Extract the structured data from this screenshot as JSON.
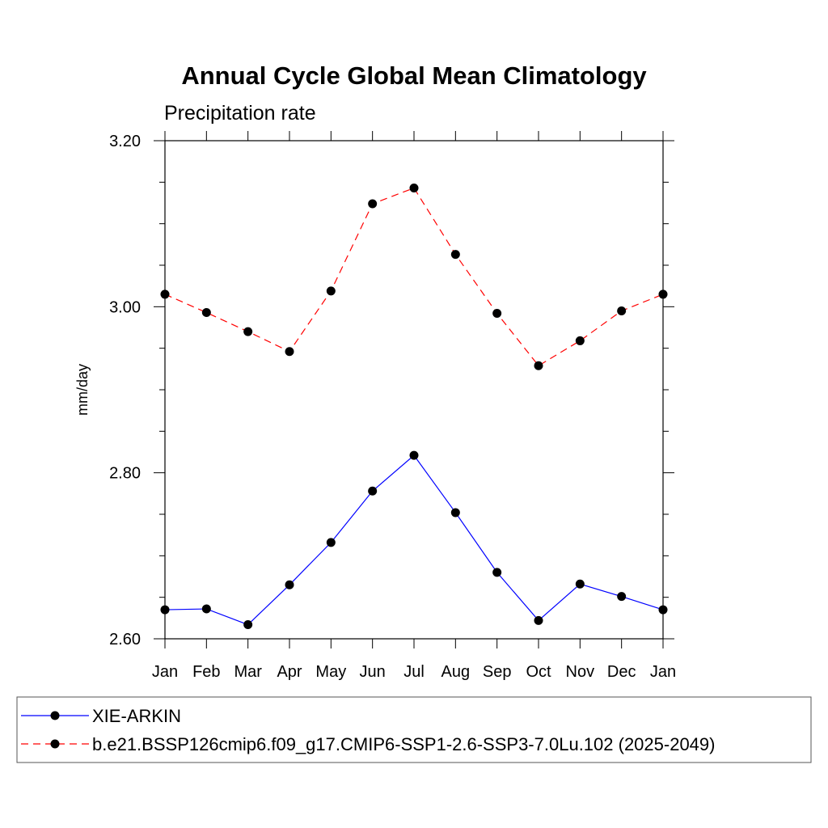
{
  "chart_data": {
    "type": "line",
    "title": "Annual Cycle Global Mean Climatology",
    "subtitle": "Precipitation rate",
    "ylabel": "mm/day",
    "xlabel": "",
    "categories": [
      "Jan",
      "Feb",
      "Mar",
      "Apr",
      "May",
      "Jun",
      "Jul",
      "Aug",
      "Sep",
      "Oct",
      "Nov",
      "Dec",
      "Jan"
    ],
    "ylim": [
      2.6,
      3.2
    ],
    "yticks": [
      "2.60",
      "2.80",
      "3.00",
      "3.20"
    ],
    "grid": false,
    "legend_position": "bottom",
    "series": [
      {
        "name": "XIE-ARKIN",
        "color": "#0000ff",
        "line_style": "solid",
        "marker": "circle",
        "values": [
          2.635,
          2.636,
          2.617,
          2.665,
          2.716,
          2.778,
          2.821,
          2.752,
          2.68,
          2.622,
          2.666,
          2.651,
          2.635
        ]
      },
      {
        "name": "b.e21.BSSP126cmip6.f09_g17.CMIP6-SSP1-2.6-SSP3-7.0Lu.102 (2025-2049)",
        "color": "#ff0000",
        "line_style": "dashed",
        "marker": "circle",
        "values": [
          3.015,
          2.993,
          2.97,
          2.946,
          3.019,
          3.124,
          3.143,
          3.063,
          2.992,
          2.929,
          2.959,
          2.995,
          3.015
        ]
      }
    ]
  }
}
